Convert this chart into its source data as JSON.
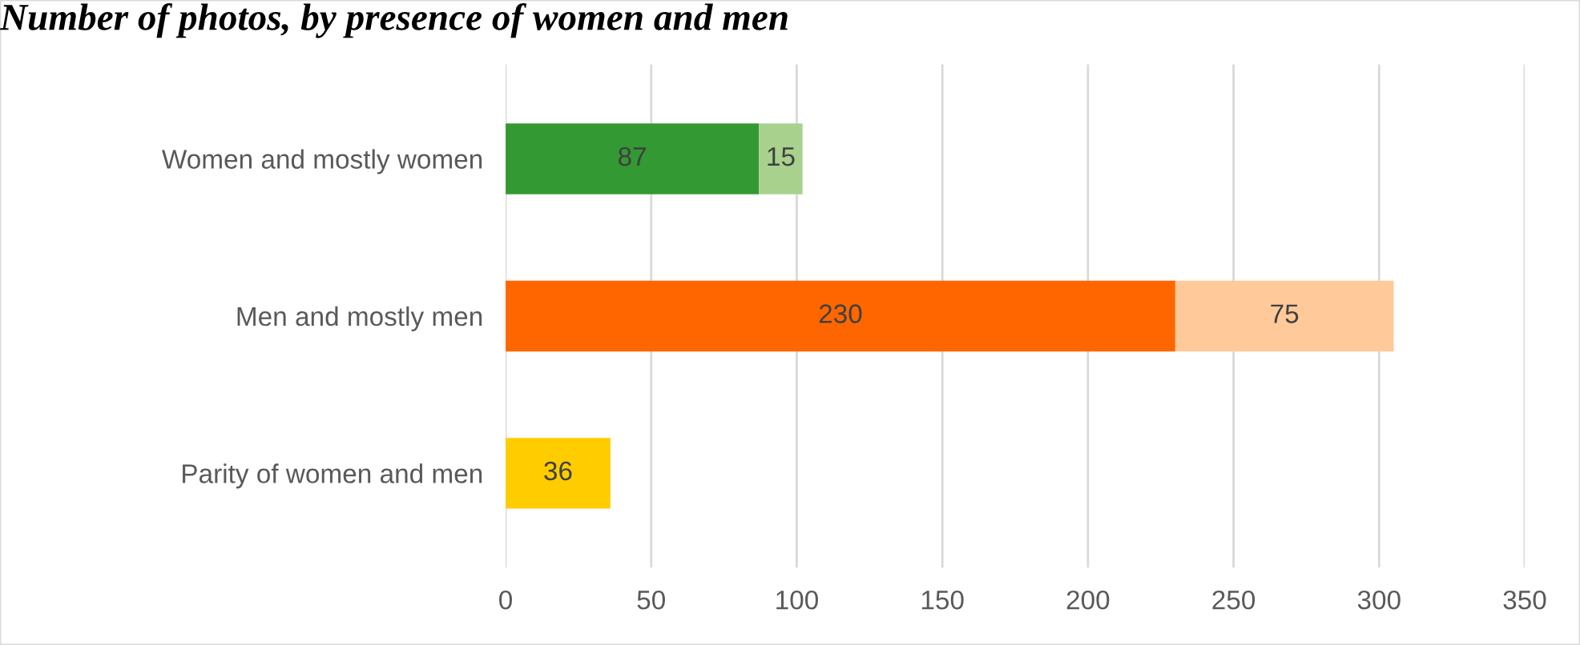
{
  "chart_data": {
    "type": "bar",
    "orientation": "horizontal",
    "stacked": true,
    "title": "Number of photos, by presence of women and men",
    "categories": [
      "Women and mostly women",
      "Men and mostly men",
      "Parity of women and men"
    ],
    "series": [
      {
        "colors": [
          "#339933",
          "#ff6600",
          "#ffcc00"
        ],
        "values": [
          87,
          230,
          36
        ]
      },
      {
        "colors": [
          "#a9d18e",
          "#ffc999",
          null
        ],
        "values": [
          15,
          75,
          null
        ]
      }
    ],
    "xlim": [
      0,
      350
    ],
    "xticks": [
      0,
      50,
      100,
      150,
      200,
      250,
      300,
      350
    ],
    "grid": "x",
    "data_labels": true,
    "legend": false
  }
}
